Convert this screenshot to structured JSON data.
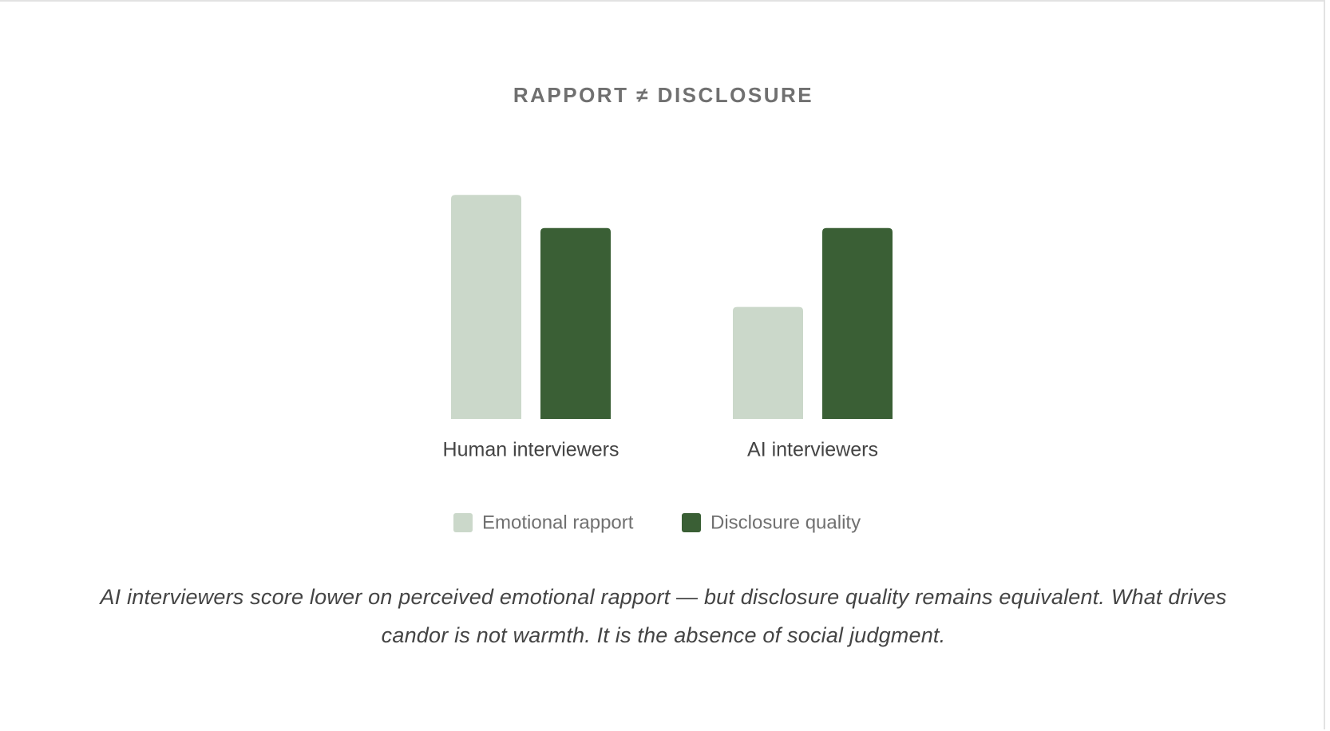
{
  "chart_data": {
    "type": "bar",
    "title": "RAPPORT ≠ DISCLOSURE",
    "categories": [
      "Human interviewers",
      "AI interviewers"
    ],
    "series": [
      {
        "name": "Emotional rapport",
        "color": "#cbd8ca",
        "values": [
          88,
          44
        ]
      },
      {
        "name": "Disclosure quality",
        "color": "#3a5f35",
        "values": [
          75,
          75
        ]
      }
    ],
    "ylim": [
      0,
      100
    ],
    "caption": "AI interviewers score lower on perceived emotional rapport — but disclosure quality remains equivalent. What drives candor is not warmth. It is the absence of social judgment."
  }
}
